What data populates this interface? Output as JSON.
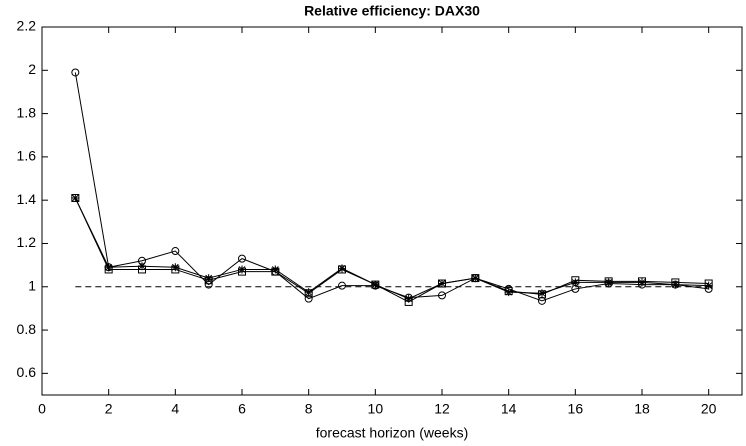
{
  "chart_data": {
    "type": "line",
    "title": "Relative efficiency: DAX30",
    "x_label": "forecast horizon (weeks)",
    "x": [
      1,
      2,
      3,
      4,
      5,
      6,
      7,
      8,
      9,
      10,
      11,
      12,
      13,
      14,
      15,
      16,
      17,
      18,
      19,
      20
    ],
    "series": [
      {
        "color": "#000000",
        "marker": "circle",
        "values": [
          1.99,
          1.09,
          1.12,
          1.165,
          1.01,
          1.13,
          1.07,
          0.945,
          1.005,
          1.005,
          0.95,
          0.96,
          1.04,
          0.99,
          0.935,
          0.99,
          1.015,
          1.01,
          1.01,
          0.99
        ]
      },
      {
        "color": "#000000",
        "marker": "square",
        "values": [
          1.41,
          1.08,
          1.08,
          1.08,
          1.03,
          1.07,
          1.07,
          0.97,
          1.08,
          1.01,
          0.93,
          1.015,
          1.04,
          0.98,
          0.965,
          1.03,
          1.025,
          1.025,
          1.02,
          1.015
        ]
      },
      {
        "color": "#000000",
        "marker": "star",
        "values": [
          1.41,
          1.09,
          1.095,
          1.09,
          1.04,
          1.08,
          1.08,
          0.975,
          1.085,
          1.01,
          0.945,
          1.015,
          1.04,
          0.975,
          0.97,
          1.02,
          1.02,
          1.02,
          1.01,
          1.005
        ]
      }
    ],
    "reference_line": 1,
    "xlim": [
      0,
      21
    ],
    "ylim": [
      0.5,
      2.2
    ],
    "xticks": [
      0,
      2,
      4,
      6,
      8,
      10,
      12,
      14,
      16,
      18,
      20
    ],
    "yticks": [
      0.6,
      0.8,
      1,
      1.2,
      1.4,
      1.6,
      1.8,
      2,
      2.2
    ]
  }
}
